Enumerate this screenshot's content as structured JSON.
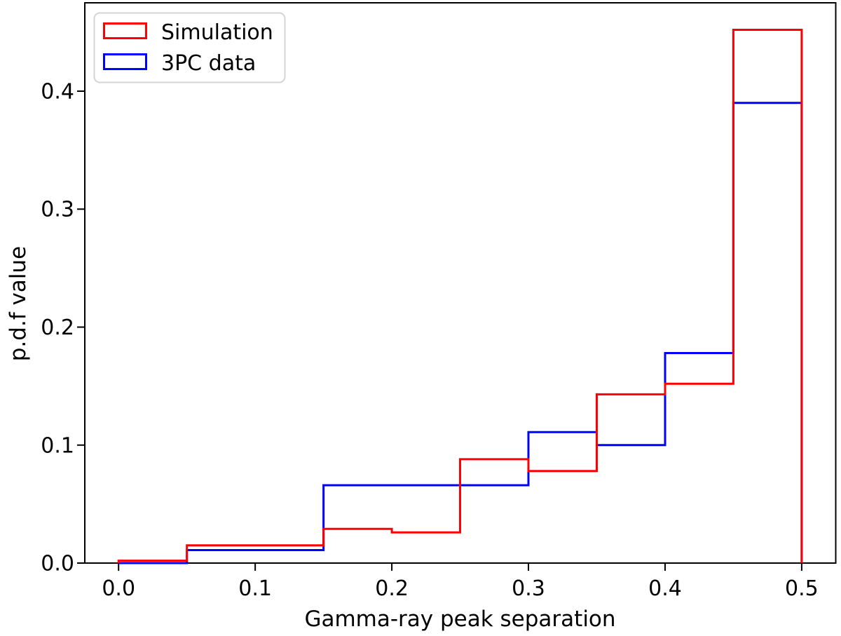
{
  "figure": {
    "background": "#ffffff",
    "frame_color": "#000000"
  },
  "chart_data": {
    "type": "step-histogram",
    "title": "",
    "xlabel": "Gamma-ray peak separation",
    "ylabel": "p.d.f value",
    "xlim": [
      -0.025,
      0.525
    ],
    "ylim": [
      0,
      0.475
    ],
    "grid": false,
    "bin_width": 0.05,
    "bin_edges": [
      0.0,
      0.05,
      0.1,
      0.15,
      0.2,
      0.25,
      0.3,
      0.35,
      0.4,
      0.45,
      0.5
    ],
    "series": [
      {
        "name": "3PC data",
        "color": "#0000ff",
        "line_width": 3,
        "values": [
          0.0,
          0.011,
          0.011,
          0.066,
          0.066,
          0.066,
          0.111,
          0.1,
          0.178,
          0.39
        ]
      },
      {
        "name": "Simulation",
        "color": "#ff0000",
        "line_width": 3,
        "values": [
          0.002,
          0.015,
          0.015,
          0.029,
          0.026,
          0.088,
          0.078,
          0.143,
          0.152,
          0.452
        ]
      }
    ],
    "x_ticks": {
      "values": [
        0.0,
        0.1,
        0.2,
        0.3,
        0.4,
        0.5
      ],
      "labels": [
        "0.0",
        "0.1",
        "0.2",
        "0.3",
        "0.4",
        "0.5"
      ]
    },
    "y_ticks": {
      "values": [
        0.0,
        0.1,
        0.2,
        0.3,
        0.4
      ],
      "labels": [
        "0.0",
        "0.1",
        "0.2",
        "0.3",
        "0.4"
      ]
    },
    "legend": {
      "position": "upper-left",
      "border_color": "#d4d4d4",
      "background": "#ffffff",
      "entries": [
        {
          "label": "Simulation",
          "color": "#ff0000"
        },
        {
          "label": "3PC data",
          "color": "#0000ff"
        }
      ]
    }
  }
}
